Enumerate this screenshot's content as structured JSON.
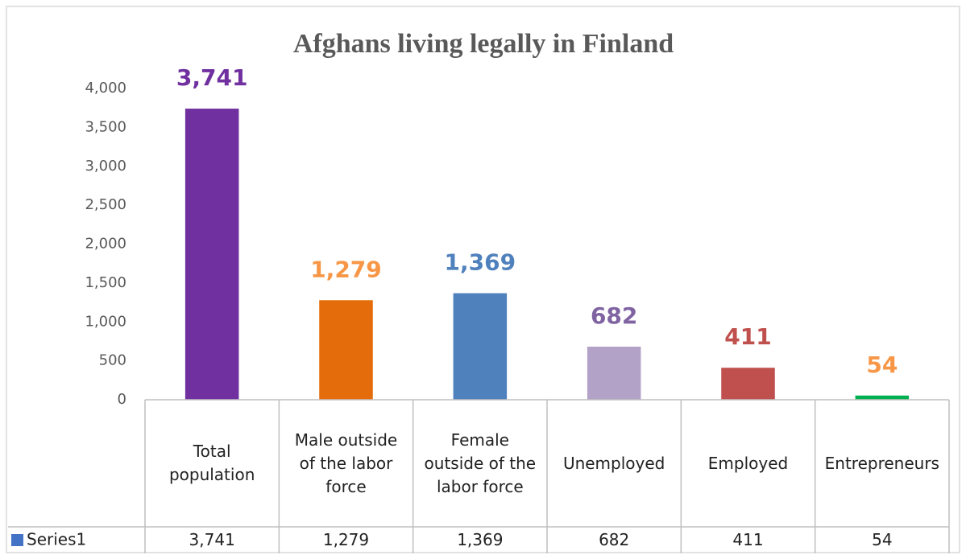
{
  "chart_data": {
    "type": "bar",
    "title": "Afghans living legally in Finland",
    "categories": [
      "Total population",
      "Male outside of the labor force",
      "Female outside of the labor force",
      "Unemployed",
      "Employed",
      "Entrepreneurs"
    ],
    "series": [
      {
        "name": "Series1",
        "color": "#4472c4",
        "values": [
          3741,
          1279,
          1369,
          682,
          411,
          54
        ],
        "value_labels": [
          "3,741",
          "1,279",
          "1,369",
          "682",
          "411",
          "54"
        ],
        "bar_colors": [
          "#7030a0",
          "#e46c0a",
          "#4f81bd",
          "#b3a2c7",
          "#c0504d",
          "#00b050"
        ],
        "label_colors": [
          "#7030a0",
          "#f79646",
          "#4f81bd",
          "#8064a2",
          "#c0504d",
          "#f79646"
        ]
      }
    ],
    "ylim": [
      0,
      4000
    ],
    "yticks": [
      0,
      500,
      {
        "value": 1000,
        "label": "1,000"
      },
      {
        "value": 1500,
        "label": "1,500"
      },
      {
        "value": 2000,
        "label": "2,000"
      },
      {
        "value": 2500,
        "label": "2,500"
      },
      {
        "value": 3000,
        "label": "3,000"
      },
      {
        "value": 3500,
        "label": "3,500"
      },
      {
        "value": 4000,
        "label": "4,000"
      }
    ],
    "grid": false,
    "data_table": true
  }
}
